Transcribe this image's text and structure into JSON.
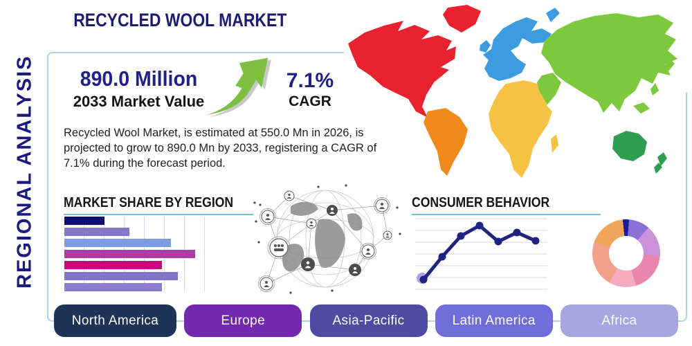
{
  "title": "RECYCLED WOOL MARKET",
  "side_label": "REGIONAL ANALYSIS",
  "stats": {
    "market_value": "890.0 Million",
    "market_value_label": "2033 Market Value",
    "cagr_value": "7.1%",
    "cagr_label": "CAGR"
  },
  "description": "Recycled Wool Market, is estimated at 550.0 Mn in 2026, is projected to grow to 890.0 Mn by 2033, registering a CAGR of 7.1% during the forecast period.",
  "sections": {
    "market_share_title": "MARKET SHARE BY REGION",
    "consumer_behavior_title": "CONSUMER BEHAVIOR"
  },
  "chart_data": [
    {
      "type": "bar",
      "orientation": "horizontal",
      "title": "MARKET SHARE BY REGION",
      "note": "bars are unlabeled in the graphic; values are percent of x-axis span",
      "values_pct": [
        28,
        45,
        74,
        91,
        68,
        79,
        68
      ],
      "colors": [
        "#0f0f6d",
        "#8677cb",
        "#7e9ce2",
        "#aa3da5",
        "#c50b7d",
        "#8273cb",
        "#8b7cd0"
      ],
      "grid": "vertical"
    },
    {
      "type": "line",
      "title": "CONSUMER BEHAVIOR",
      "note": "7 unlabeled points, scale 0-100 estimated from plot area",
      "values": [
        12,
        45,
        75,
        90,
        67,
        80,
        68
      ],
      "line_color": "#20247f",
      "marker_color": "#20247f",
      "start_marker_halo_color": "#b2a0e4",
      "grid": "horizontal"
    },
    {
      "type": "pie",
      "variant": "donut",
      "note": "clockwise from 12 o'clock, percent of whole",
      "slices": [
        {
          "value": 3,
          "color": "#1c1c9a"
        },
        {
          "value": 10,
          "color": "#8a70d6"
        },
        {
          "value": 15,
          "color": "#ca92da"
        },
        {
          "value": 19,
          "color": "#ea86ae"
        },
        {
          "value": 13,
          "color": "#f6abc3"
        },
        {
          "value": 22,
          "color": "#f4a18c"
        },
        {
          "value": 18,
          "color": "#f0a45a"
        }
      ]
    }
  ],
  "regions": [
    {
      "label": "North America",
      "color": "#1e3456"
    },
    {
      "label": "Europe",
      "color": "#7329ad"
    },
    {
      "label": "Asia-Pacific",
      "color": "#4d4ba2"
    },
    {
      "label": "Latin America",
      "color": "#6f6ed8"
    },
    {
      "label": "Africa",
      "color": "#a7a6e1"
    }
  ],
  "map": {
    "north_america": "#e8232f",
    "greenland": "#e8232f",
    "south_america": "#f18a1d",
    "europe": "#3d9ce0",
    "africa": "#f6c243",
    "asia": "#7cc93d",
    "australia": "#2f9e50",
    "new_zealand": "#2f9e50"
  },
  "theme": {
    "navy_text": "#1b1b75",
    "underline": "#79bcd6",
    "panel_border": "#aed3e4",
    "arrow_green": "#7dbf3f",
    "arrow_shadow": "#b0b4b0"
  }
}
